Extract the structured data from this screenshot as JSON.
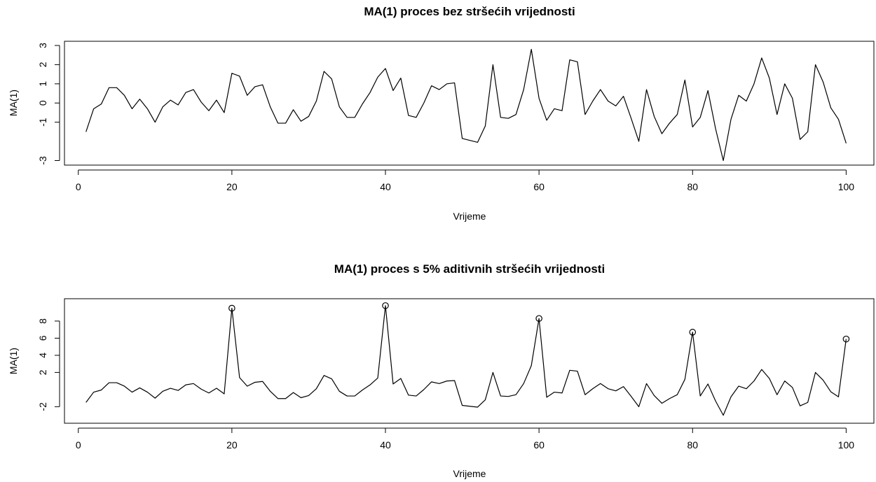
{
  "chart_data": [
    {
      "type": "line",
      "title": "MA(1) proces bez stršećih vrijednosti",
      "xlabel": "Vrijeme",
      "ylabel": "MA(1)",
      "xlim": [
        1,
        100
      ],
      "ylim": [
        -3,
        3
      ],
      "x_ticks": [
        0,
        20,
        40,
        60,
        80,
        100
      ],
      "y_ticks": [
        -3,
        -1,
        0,
        1,
        2,
        3
      ],
      "y_tick_labels": [
        "-3",
        "-1",
        "0",
        "1",
        "2",
        "3"
      ],
      "x_start": 1,
      "values": [
        -1.5,
        -0.3,
        -0.05,
        0.8,
        0.8,
        0.4,
        -0.3,
        0.2,
        -0.3,
        -1.0,
        -0.2,
        0.15,
        -0.1,
        0.55,
        0.7,
        0.05,
        -0.4,
        0.15,
        -0.5,
        1.55,
        1.4,
        0.4,
        0.85,
        0.95,
        -0.2,
        -1.05,
        -1.05,
        -0.35,
        -0.95,
        -0.7,
        0.1,
        1.65,
        1.25,
        -0.2,
        -0.75,
        -0.75,
        -0.05,
        0.55,
        1.35,
        1.8,
        0.65,
        1.3,
        -0.65,
        -0.75,
        0.0,
        0.9,
        0.7,
        1.0,
        1.05,
        -1.85,
        -1.95,
        -2.05,
        -1.2,
        2.0,
        -0.75,
        -0.8,
        -0.6,
        0.7,
        2.8,
        0.25,
        -0.9,
        -0.3,
        -0.4,
        2.25,
        2.15,
        -0.6,
        0.1,
        0.7,
        0.1,
        -0.15,
        0.35,
        -0.8,
        -2.0,
        0.7,
        -0.7,
        -1.6,
        -1.05,
        -0.6,
        1.2,
        -1.25,
        -0.75,
        0.65,
        -1.35,
        -3.0,
        -0.85,
        0.4,
        0.1,
        1.0,
        2.35,
        1.3,
        -0.6,
        1.0,
        0.25,
        -1.9,
        -1.5,
        2.0,
        1.1,
        -0.25,
        -0.85,
        -2.1
      ]
    },
    {
      "type": "line",
      "title": "MA(1) proces s 5% aditivnih stršećih vrijednosti",
      "xlabel": "Vrijeme",
      "ylabel": "MA(1)",
      "xlim": [
        1,
        100
      ],
      "ylim": [
        -3.4,
        10.2
      ],
      "x_ticks": [
        0,
        20,
        40,
        60,
        80,
        100
      ],
      "y_ticks": [
        -2,
        2,
        4,
        6,
        8
      ],
      "y_tick_labels": [
        "-2",
        "2",
        "4",
        "6",
        "8"
      ],
      "x_start": 1,
      "values": [
        -1.5,
        -0.3,
        -0.05,
        0.8,
        0.8,
        0.4,
        -0.3,
        0.2,
        -0.3,
        -1.0,
        -0.2,
        0.15,
        -0.1,
        0.55,
        0.7,
        0.05,
        -0.4,
        0.15,
        -0.5,
        9.5,
        1.4,
        0.4,
        0.85,
        0.95,
        -0.2,
        -1.05,
        -1.05,
        -0.35,
        -0.95,
        -0.7,
        0.1,
        1.65,
        1.25,
        -0.2,
        -0.75,
        -0.75,
        -0.05,
        0.55,
        1.35,
        9.8,
        0.65,
        1.3,
        -0.65,
        -0.75,
        0.0,
        0.9,
        0.7,
        1.0,
        1.05,
        -1.85,
        -1.95,
        -2.05,
        -1.2,
        2.0,
        -0.75,
        -0.8,
        -0.6,
        0.7,
        2.8,
        8.3,
        -0.9,
        -0.3,
        -0.4,
        2.25,
        2.15,
        -0.6,
        0.1,
        0.7,
        0.1,
        -0.15,
        0.35,
        -0.8,
        -2.0,
        0.7,
        -0.7,
        -1.6,
        -1.05,
        -0.6,
        1.2,
        6.7,
        -0.75,
        0.65,
        -1.35,
        -3.0,
        -0.85,
        0.4,
        0.1,
        1.0,
        2.35,
        1.3,
        -0.6,
        1.0,
        0.25,
        -1.9,
        -1.5,
        2.0,
        1.1,
        -0.25,
        -0.85,
        5.9
      ],
      "outliers": [
        {
          "x": 20,
          "y": 9.5
        },
        {
          "x": 40,
          "y": 9.8
        },
        {
          "x": 60,
          "y": 8.3
        },
        {
          "x": 80,
          "y": 6.7
        },
        {
          "x": 100,
          "y": 5.9
        }
      ]
    }
  ]
}
